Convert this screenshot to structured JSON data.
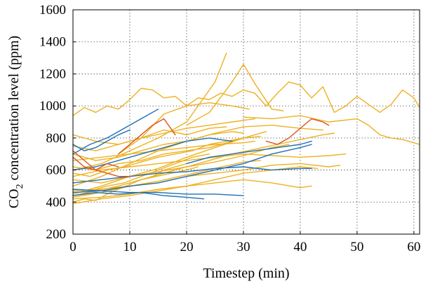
{
  "chart_data": {
    "type": "line",
    "xlabel": "Timestep (min)",
    "ylabel_main": "CO",
    "ylabel_sub": "2",
    "ylabel_rest": " concentration level (ppm)",
    "xlim": [
      0,
      61
    ],
    "ylim": [
      200,
      1600
    ],
    "xticks": [
      0,
      10,
      20,
      30,
      40,
      50,
      60
    ],
    "yticks": [
      200,
      400,
      600,
      800,
      1000,
      1200,
      1400,
      1600
    ],
    "grid": true,
    "grid_style": "dotted",
    "colors": {
      "blue": "#1f6fb4",
      "orange": "#d95319",
      "yellow": "#edb120"
    },
    "series": [
      {
        "color": "yellow",
        "x": [
          0,
          2,
          4,
          6,
          8,
          10,
          12,
          14,
          16,
          18,
          20,
          22,
          24,
          26,
          28,
          30,
          32,
          34,
          36,
          38,
          40,
          42,
          44,
          46,
          48,
          50,
          52,
          54,
          56,
          58,
          60,
          61
        ],
        "y": [
          940,
          990,
          960,
          1000,
          980,
          1040,
          1110,
          1100,
          1050,
          1060,
          1000,
          1050,
          1040,
          1080,
          1060,
          1100,
          1080,
          1000,
          1080,
          1150,
          1130,
          1050,
          1120,
          960,
          1000,
          1060,
          1010,
          960,
          1010,
          1100,
          1050,
          990
        ]
      },
      {
        "color": "yellow",
        "x": [
          30,
          35,
          40,
          45,
          50,
          52,
          54,
          56,
          58,
          60,
          61
        ],
        "y": [
          930,
          920,
          940,
          900,
          920,
          880,
          820,
          800,
          790,
          770,
          760
        ]
      },
      {
        "color": "yellow",
        "x": [
          0,
          5,
          10,
          15,
          20,
          25,
          27
        ],
        "y": [
          600,
          640,
          720,
          800,
          900,
          1150,
          1330
        ]
      },
      {
        "color": "yellow",
        "x": [
          20,
          24,
          28,
          30,
          32,
          35,
          37
        ],
        "y": [
          880,
          960,
          1150,
          1260,
          1140,
          980,
          970
        ]
      },
      {
        "color": "yellow",
        "x": [
          8,
          12,
          16,
          20,
          24,
          28,
          31
        ],
        "y": [
          700,
          800,
          950,
          1000,
          1020,
          1000,
          980
        ]
      },
      {
        "color": "yellow",
        "x": [
          0,
          5,
          10,
          15,
          20,
          25,
          30,
          35,
          40,
          44
        ],
        "y": [
          500,
          560,
          640,
          720,
          780,
          830,
          870,
          880,
          860,
          850
        ]
      },
      {
        "color": "yellow",
        "x": [
          0,
          5,
          10,
          15,
          20,
          25,
          30,
          34
        ],
        "y": [
          450,
          500,
          560,
          610,
          680,
          740,
          800,
          840
        ]
      },
      {
        "color": "yellow",
        "x": [
          0,
          5,
          10,
          15,
          20,
          25,
          30,
          35,
          40,
          42
        ],
        "y": [
          420,
          430,
          450,
          480,
          500,
          520,
          540,
          520,
          490,
          500
        ]
      },
      {
        "color": "yellow",
        "x": [
          0,
          5,
          10,
          15,
          20,
          25,
          30,
          35,
          40,
          45,
          48
        ],
        "y": [
          560,
          600,
          620,
          640,
          660,
          680,
          700,
          690,
          680,
          690,
          700
        ]
      },
      {
        "color": "yellow",
        "x": [
          0,
          4,
          8,
          12,
          16,
          20,
          24,
          28,
          32
        ],
        "y": [
          750,
          720,
          760,
          800,
          830,
          860,
          880,
          900,
          920
        ]
      },
      {
        "color": "yellow",
        "x": [
          0,
          4,
          8,
          12,
          16,
          20,
          24,
          27
        ],
        "y": [
          820,
          780,
          760,
          800,
          850,
          820,
          860,
          870
        ]
      },
      {
        "color": "yellow",
        "x": [
          0,
          5,
          10,
          15,
          20,
          25,
          30,
          35,
          40,
          45,
          47
        ],
        "y": [
          430,
          460,
          500,
          520,
          560,
          580,
          600,
          630,
          640,
          620,
          630
        ]
      },
      {
        "color": "yellow",
        "x": [
          0,
          3,
          6,
          9,
          12,
          15,
          18,
          21,
          24
        ],
        "y": [
          480,
          470,
          500,
          520,
          560,
          600,
          640,
          680,
          700
        ]
      },
      {
        "color": "yellow",
        "x": [
          0,
          2,
          4,
          6,
          8,
          10,
          12,
          14,
          16,
          18,
          20
        ],
        "y": [
          400,
          420,
          410,
          450,
          480,
          510,
          540,
          560,
          600,
          620,
          640
        ]
      },
      {
        "color": "yellow",
        "x": [
          0,
          5,
          10,
          15,
          20,
          25,
          30,
          32
        ],
        "y": [
          660,
          680,
          700,
          720,
          740,
          760,
          770,
          780
        ]
      },
      {
        "color": "yellow",
        "x": [
          0,
          5,
          10,
          15,
          20,
          25,
          30,
          35,
          38
        ],
        "y": [
          540,
          520,
          560,
          590,
          620,
          650,
          690,
          740,
          760
        ]
      },
      {
        "color": "yellow",
        "x": [
          0,
          4,
          8,
          12,
          16,
          20,
          24,
          28,
          30
        ],
        "y": [
          620,
          600,
          640,
          660,
          700,
          720,
          740,
          780,
          800
        ]
      },
      {
        "color": "yellow",
        "x": [
          0,
          5,
          10,
          15,
          20,
          25,
          30,
          35,
          40,
          43
        ],
        "y": [
          390,
          420,
          440,
          470,
          500,
          540,
          580,
          600,
          620,
          610
        ]
      },
      {
        "color": "yellow",
        "x": [
          0,
          4,
          8,
          12,
          16,
          20,
          24,
          28,
          30
        ],
        "y": [
          700,
          660,
          680,
          720,
          760,
          780,
          820,
          840,
          830
        ]
      },
      {
        "color": "yellow",
        "x": [
          0,
          5,
          10,
          15,
          20,
          25,
          30,
          33
        ],
        "y": [
          470,
          480,
          500,
          530,
          570,
          610,
          650,
          660
        ]
      },
      {
        "color": "yellow",
        "x": [
          0,
          3,
          6,
          9,
          12,
          15,
          18,
          21,
          24,
          27,
          30,
          33
        ],
        "y": [
          580,
          560,
          600,
          620,
          650,
          680,
          700,
          720,
          760,
          780,
          800,
          810
        ]
      },
      {
        "color": "yellow",
        "x": [
          12,
          16,
          20,
          24,
          28,
          32,
          36,
          40,
          44,
          46
        ],
        "y": [
          540,
          580,
          620,
          660,
          700,
          730,
          760,
          790,
          820,
          830
        ]
      },
      {
        "color": "yellow",
        "x": [
          0,
          4,
          8,
          12,
          16,
          20,
          22
        ],
        "y": [
          440,
          470,
          500,
          540,
          570,
          600,
          620
        ]
      },
      {
        "color": "blue",
        "x": [
          0,
          3,
          6,
          9,
          12,
          15
        ],
        "y": [
          700,
          760,
          800,
          860,
          920,
          980
        ]
      },
      {
        "color": "blue",
        "x": [
          0,
          2,
          4,
          6,
          8,
          10
        ],
        "y": [
          760,
          720,
          740,
          780,
          820,
          850
        ]
      },
      {
        "color": "blue",
        "x": [
          0,
          5,
          10,
          15,
          20,
          25,
          30,
          35,
          40,
          42
        ],
        "y": [
          460,
          470,
          500,
          520,
          560,
          600,
          640,
          700,
          740,
          760
        ]
      },
      {
        "color": "blue",
        "x": [
          0,
          5,
          10,
          15,
          20,
          25,
          30,
          35,
          40,
          42
        ],
        "y": [
          520,
          540,
          560,
          580,
          590,
          610,
          620,
          600,
          610,
          610
        ]
      },
      {
        "color": "blue",
        "x": [
          0,
          4,
          8,
          12,
          16,
          20,
          23
        ],
        "y": [
          440,
          460,
          450,
          460,
          440,
          430,
          420
        ]
      },
      {
        "color": "blue",
        "x": [
          0,
          5,
          10,
          15,
          20,
          25,
          30
        ],
        "y": [
          480,
          470,
          460,
          460,
          450,
          450,
          440
        ]
      },
      {
        "color": "blue",
        "x": [
          0,
          4,
          8,
          12,
          16,
          20,
          24,
          28
        ],
        "y": [
          600,
          620,
          660,
          700,
          740,
          780,
          800,
          780
        ]
      },
      {
        "color": "blue",
        "x": [
          20,
          24,
          28,
          32,
          36,
          40,
          42
        ],
        "y": [
          640,
          680,
          700,
          720,
          740,
          760,
          780
        ]
      },
      {
        "color": "orange",
        "x": [
          0,
          2,
          4,
          6,
          8,
          10
        ],
        "y": [
          720,
          660,
          600,
          580,
          560,
          560
        ]
      },
      {
        "color": "orange",
        "x": [
          8,
          10,
          12,
          14,
          16,
          18
        ],
        "y": [
          700,
          760,
          820,
          880,
          920,
          820
        ]
      },
      {
        "color": "orange",
        "x": [
          34,
          36,
          38,
          40,
          42,
          44,
          45
        ],
        "y": [
          780,
          760,
          800,
          860,
          920,
          900,
          880
        ]
      },
      {
        "color": "orange",
        "x": [
          0,
          2,
          4,
          6,
          8
        ],
        "y": [
          680,
          620,
          600,
          640,
          620
        ]
      }
    ]
  }
}
